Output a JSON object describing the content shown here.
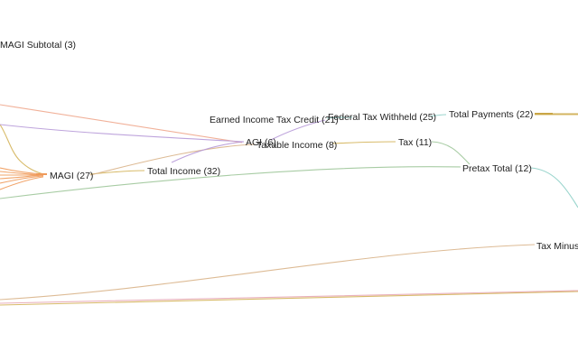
{
  "diagram": {
    "type": "flow-links",
    "nodes": [
      {
        "id": "magi_subtotal",
        "label": "MAGI Subtotal (3)"
      },
      {
        "id": "eitc",
        "label": "Earned Income Tax Credit (21)"
      },
      {
        "id": "fed_withheld",
        "label": "Federal Tax Withheld (25)"
      },
      {
        "id": "total_payments",
        "label": "Total Payments (22)"
      },
      {
        "id": "agi",
        "label": "AGI (6)"
      },
      {
        "id": "taxable_income",
        "label": "Taxable Income (8)"
      },
      {
        "id": "tax",
        "label": "Tax (11)"
      },
      {
        "id": "magi",
        "label": "MAGI (27)"
      },
      {
        "id": "total_income",
        "label": "Total Income (32)"
      },
      {
        "id": "pretax_total",
        "label": "Pretax Total (12)"
      },
      {
        "id": "tax_minus",
        "label": "Tax Minus"
      }
    ],
    "colors": {
      "orange": "#ef9a5a",
      "peach": "#f0a98e",
      "purple": "#b79ad8",
      "olive": "#d4b45a",
      "sage": "#9fc79a",
      "teal": "#8fd0c8",
      "tan": "#d9b48a",
      "pink": "#e7a7b4",
      "gold": "#c9a646"
    }
  }
}
